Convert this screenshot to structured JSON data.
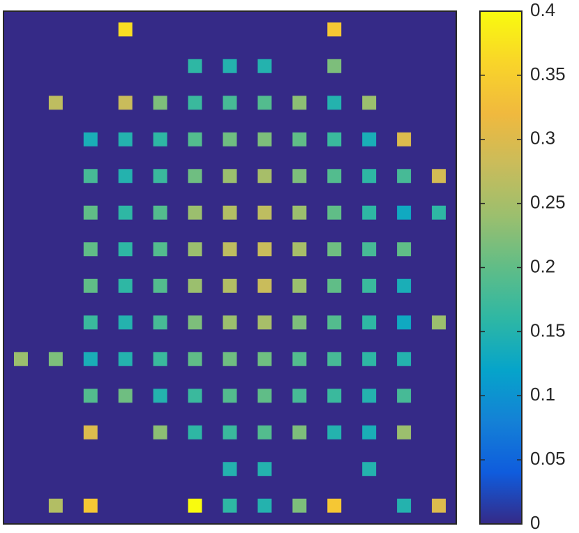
{
  "chart_data": {
    "type": "heatmap",
    "title": "",
    "xlabel": "",
    "ylabel": "",
    "grid": false,
    "background_value": 0,
    "rows": 14,
    "cols": 13,
    "values": [
      [
        0,
        0,
        0,
        0.37,
        0,
        0,
        0,
        0,
        0,
        0.34,
        0,
        0,
        0
      ],
      [
        0,
        0,
        0,
        0,
        0,
        0.16,
        0.15,
        0.15,
        0,
        0.22,
        0,
        0,
        0
      ],
      [
        0,
        0.27,
        0,
        0.28,
        0.22,
        0.17,
        0.18,
        0.19,
        0.23,
        0.15,
        0.24,
        0,
        0
      ],
      [
        0,
        0,
        0.14,
        0.15,
        0.16,
        0.19,
        0.21,
        0.22,
        0.2,
        0.17,
        0.14,
        0.3,
        0
      ],
      [
        0,
        0,
        0.18,
        0.15,
        0.17,
        0.21,
        0.24,
        0.25,
        0.22,
        0.19,
        0.16,
        0.18,
        0.29
      ],
      [
        0,
        0,
        0.2,
        0.16,
        0.19,
        0.24,
        0.26,
        0.27,
        0.24,
        0.2,
        0.16,
        0.13,
        0.16
      ],
      [
        0,
        0,
        0.2,
        0.16,
        0.19,
        0.24,
        0.27,
        0.28,
        0.25,
        0.21,
        0.18,
        0.2,
        0
      ],
      [
        0,
        0,
        0.2,
        0.16,
        0.19,
        0.24,
        0.26,
        0.28,
        0.24,
        0.2,
        0.17,
        0.14,
        0
      ],
      [
        0,
        0,
        0.17,
        0.15,
        0.18,
        0.22,
        0.24,
        0.25,
        0.22,
        0.19,
        0.16,
        0.13,
        0.24
      ],
      [
        0.24,
        0.22,
        0.14,
        0.15,
        0.17,
        0.2,
        0.21,
        0.21,
        0.19,
        0.18,
        0.16,
        0.15,
        0
      ],
      [
        0,
        0,
        0.19,
        0.21,
        0.15,
        0.17,
        0.19,
        0.2,
        0.18,
        0.17,
        0.15,
        0.18,
        0
      ],
      [
        0,
        0,
        0.3,
        0,
        0.23,
        0.16,
        0.17,
        0.19,
        0.22,
        0.15,
        0.14,
        0.24,
        0
      ],
      [
        0,
        0,
        0,
        0,
        0,
        0,
        0.15,
        0.15,
        0,
        0,
        0.15,
        0,
        0
      ],
      [
        0,
        0.26,
        0.34,
        0,
        0,
        0.4,
        0.16,
        0.15,
        0.22,
        0.34,
        0,
        0.15,
        0.3
      ]
    ],
    "colorbar": {
      "range": [
        0,
        0.4
      ],
      "ticks": [
        0,
        0.05,
        0.1,
        0.15,
        0.2,
        0.25,
        0.3,
        0.35,
        0.4
      ],
      "tick_labels": [
        "0",
        "0.05",
        "0.1",
        "0.15",
        "0.2",
        "0.25",
        "0.3",
        "0.35",
        "0.4"
      ],
      "position": "right"
    },
    "colormap": "parula",
    "colors": {
      "background": "#352a87",
      "frame": "#262626"
    }
  }
}
